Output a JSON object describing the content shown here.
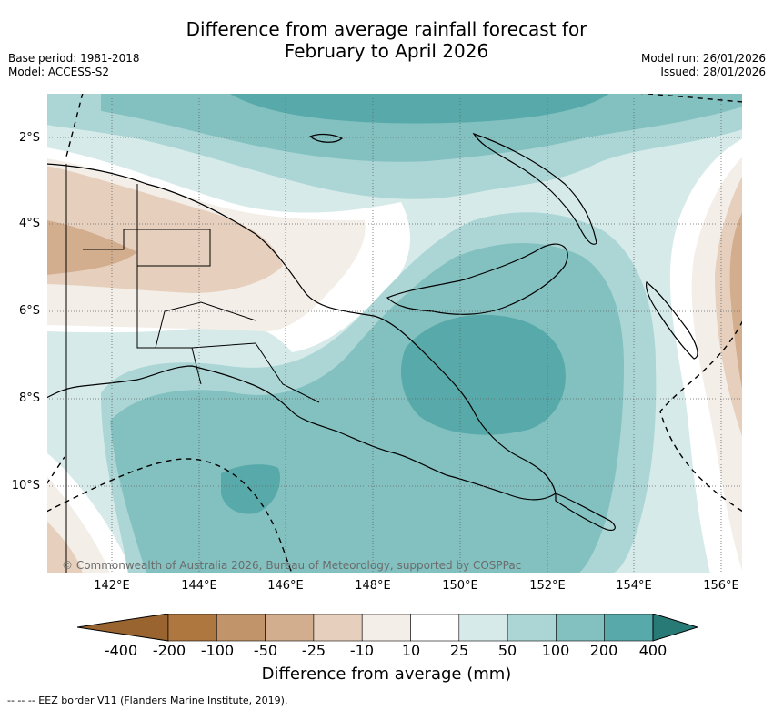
{
  "title": {
    "line1": "Difference from average rainfall forecast for",
    "line2": "February to April 2026"
  },
  "meta": {
    "base_period": "Base period: 1981-2018",
    "model": "Model: ACCESS-S2",
    "model_run": "Model run: 26/01/2026",
    "issued": "Issued: 28/01/2026"
  },
  "axes": {
    "lat_labels": [
      "2°S",
      "4°S",
      "6°S",
      "8°S",
      "10°S"
    ],
    "lon_labels": [
      "142°E",
      "144°E",
      "146°E",
      "148°E",
      "150°E",
      "152°E",
      "154°E",
      "156°E"
    ]
  },
  "copyright": "© Commonwealth of Australia 2026, Bureau of Meteorology, supported by COSPPac",
  "colorbar": {
    "title": "Difference from average (mm)",
    "labels": [
      "-400",
      "-200",
      "-100",
      "-50",
      "-25",
      "-10",
      "10",
      "25",
      "50",
      "100",
      "200",
      "400"
    ],
    "colors": {
      "lt400": "#9a6430",
      "m400_200": "#af7740",
      "m200_100": "#c29469",
      "m100_50": "#d2ae8f",
      "m50_25": "#e6d0bd",
      "m25_10": "#f4eee8",
      "m10_10": "#ffffff",
      "p10_25": "#d5eae9",
      "p25_50": "#acd6d5",
      "p50_100": "#83c1c0",
      "p100_200": "#58aaaa",
      "p200_400": "#2f9592",
      "gt400": "#287a77"
    }
  },
  "footnote": "-- -- -- EEZ border V11 (Flanders Marine Institute, 2019)."
}
